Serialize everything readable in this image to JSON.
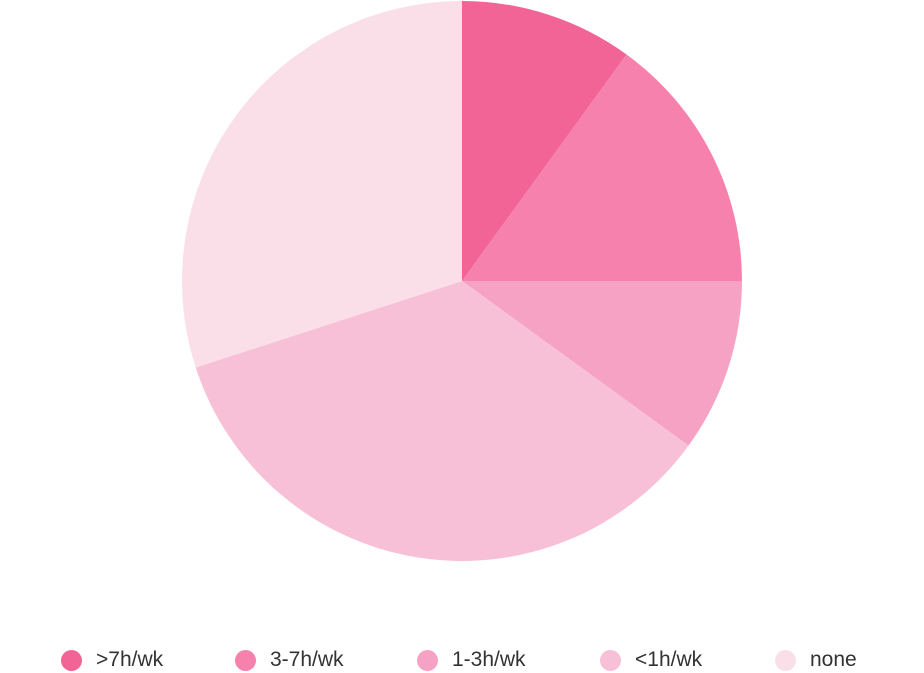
{
  "chart_data": {
    "type": "pie",
    "title": "",
    "categories": [
      ">7h/wk",
      "3-7h/wk",
      "1-3h/wk",
      "<1h/wk",
      "none"
    ],
    "values": [
      10,
      15,
      10,
      35,
      30
    ],
    "colors": [
      "#f26396",
      "#f581ac",
      "#f6a2c4",
      "#f8c0d6",
      "#fbdfe8"
    ],
    "start_angle_deg": 0,
    "direction": "clockwise",
    "legend_position": "bottom"
  }
}
